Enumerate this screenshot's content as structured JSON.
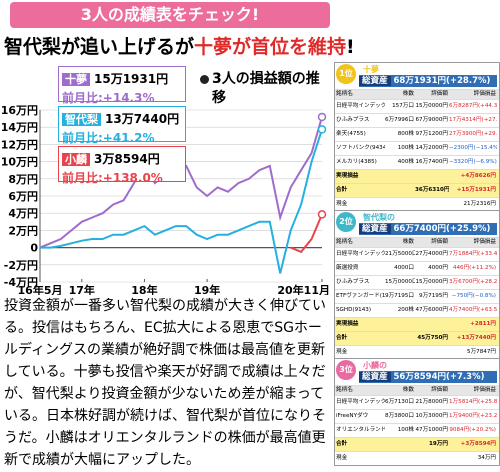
{
  "header": {
    "banner": "3人の成績表をチェック!",
    "headline": [
      "智代梨が追い上げるが",
      "十夢が首位を維持",
      "!"
    ]
  },
  "chart_data": {
    "type": "line",
    "title": "3人の損益額の推移",
    "categories": [
      "16年5月",
      null,
      null,
      null,
      "17年",
      null,
      null,
      null,
      null,
      null,
      "18年",
      null,
      null,
      null,
      null,
      null,
      "19年",
      null,
      null,
      null,
      null,
      null,
      null,
      null,
      null,
      null,
      null,
      "20年11月"
    ],
    "series": [
      {
        "name": "十夢",
        "color": "#a06ccc",
        "amount": "15万1931円",
        "change": "前月比:+14.3%",
        "values": [
          0,
          5000,
          10000,
          20000,
          30000,
          35000,
          40000,
          50000,
          55000,
          75000,
          95000,
          75000,
          85000,
          90000,
          95000,
          70000,
          60000,
          70000,
          65000,
          75000,
          80000,
          90000,
          95000,
          35000,
          70000,
          90000,
          110000,
          151931
        ]
      },
      {
        "name": "智代梨",
        "color": "#24b0e0",
        "amount": "13万7440円",
        "change": "前月比:+41.2%",
        "values": [
          0,
          0,
          2000,
          5000,
          8000,
          10000,
          10000,
          15000,
          15000,
          20000,
          25000,
          15000,
          20000,
          25000,
          25000,
          15000,
          10000,
          15000,
          15000,
          20000,
          25000,
          30000,
          30000,
          -30000,
          20000,
          50000,
          100000,
          137440
        ]
      },
      {
        "name": "小麟",
        "color": "#e8444c",
        "amount": "3万8594円",
        "change": "前月比:+138.0%",
        "values": [
          null,
          null,
          null,
          null,
          null,
          null,
          null,
          null,
          null,
          null,
          null,
          null,
          null,
          null,
          null,
          null,
          null,
          null,
          null,
          null,
          null,
          null,
          null,
          null,
          0,
          -5000,
          10000,
          38594
        ]
      }
    ],
    "ylim": [
      -40000,
      160000
    ],
    "yticks": [
      {
        "value": 160000,
        "label": "16万円"
      },
      {
        "value": 140000,
        "label": "14万円"
      },
      {
        "value": 120000,
        "label": "12万円"
      },
      {
        "value": 100000,
        "label": "10万円"
      },
      {
        "value": 80000,
        "label": "8万円"
      },
      {
        "value": 60000,
        "label": "6万円"
      },
      {
        "value": 40000,
        "label": "4万円"
      },
      {
        "value": 20000,
        "label": "2万円"
      },
      0,
      {
        "value": -20000,
        "label": "-2万円"
      },
      {
        "value": -40000,
        "label": "-4万円"
      }
    ],
    "grid": true
  },
  "article": "投資金額が一番多い智代梨の成績が大きく伸びている。投信はもちろん、EC拡大による恩恵でSGホールディングスの業績が絶好調で株価は最高値を更新している。十夢も投信や楽天が好調で成績は上々だが、智代梨より投資金額が少ないため差が縮まっている。日本株好調が続けば、智代梨が首位になりそうだ。小麟はオリエンタルランドの株価が最高値更新で成績が大幅にアップした。",
  "tables": [
    {
      "rank": "1位",
      "owner": "十夢",
      "color": "#f2c31a",
      "total_label": "総資産",
      "total": "68万1931円(+28.7%)",
      "columns": [
        "銘柄名",
        "株数",
        "評価額",
        "評価損益"
      ],
      "rows": [
        [
          "日経平均インデックス",
          "157万口",
          "15万0000円",
          "6万8287円(+44.3%)"
        ],
        [
          "ひふみプラス",
          "6万7996口",
          "67万9000円",
          "17万4314円(+27.1%)"
        ],
        [
          "楽天(4755)",
          "800株",
          "97万1200円",
          "27万3900円(+29.8%)"
        ],
        [
          "ソフトバンク(9434)",
          "100株",
          "14万2000円",
          "−2300円(−15.4%)"
        ],
        [
          "メルカリ(4385)",
          "400株",
          "16万7400円",
          "−3320円(−6.9%)"
        ],
        [
          "実現損益",
          "+4万8626円"
        ],
        [
          "合計",
          "36万6310円",
          "+15万1931円"
        ],
        [
          "現金",
          "21万2316円"
        ]
      ]
    },
    {
      "rank": "2位",
      "owner": "智代梨の",
      "color": "#3fb7c9",
      "total_label": "総資産",
      "total": "66万7400円(+25.9%)",
      "columns": [
        "銘柄名",
        "株数",
        "評価額",
        "評価損益"
      ],
      "rows": [
        [
          "日経平均インデックス",
          "21万5000口",
          "27万4000円",
          "7万1884円(+33.4%)"
        ],
        [
          "厳選投資",
          "4000口",
          "4000円",
          "446円(+11.2%)"
        ],
        [
          "ひふみプラス",
          "15万0000口",
          "15万0000円",
          "3万6700円(+28.2%)"
        ],
        [
          "ETFヴァンガード(1546)",
          "9万7195口",
          "9万7195円",
          "−750円(−0.8%)"
        ],
        [
          "SGHD(9143)",
          "200株",
          "47万6000円",
          "4万7400円(+63.5%)"
        ],
        [
          "実現損益",
          "+2811円"
        ],
        [
          "合計",
          "45万750円",
          "+13万7440円"
        ],
        [
          "現金",
          "5万7847円"
        ]
      ]
    },
    {
      "rank": "3位",
      "owner": "小麟の",
      "color": "#e96aa0",
      "total_label": "総資産",
      "total": "56万8594円(+7.3%)",
      "columns": [
        "銘柄名",
        "株数",
        "評価額",
        "評価損益"
      ],
      "rows": [
        [
          "日経平均インデックス",
          "6万7130口",
          "21万8000円",
          "1万5814円(+25.8%)"
        ],
        [
          "iFreeNYダウ",
          "8万3800口",
          "10万3000円",
          "1万9400円(+23.2%)"
        ],
        [
          "オリエンタルランド(4661)",
          "100株",
          "47万1000円",
          "9084円(+20.2%)"
        ],
        [
          "合計",
          "19万円",
          "+3万8594円"
        ],
        [
          "現金",
          "34万円"
        ]
      ]
    }
  ]
}
